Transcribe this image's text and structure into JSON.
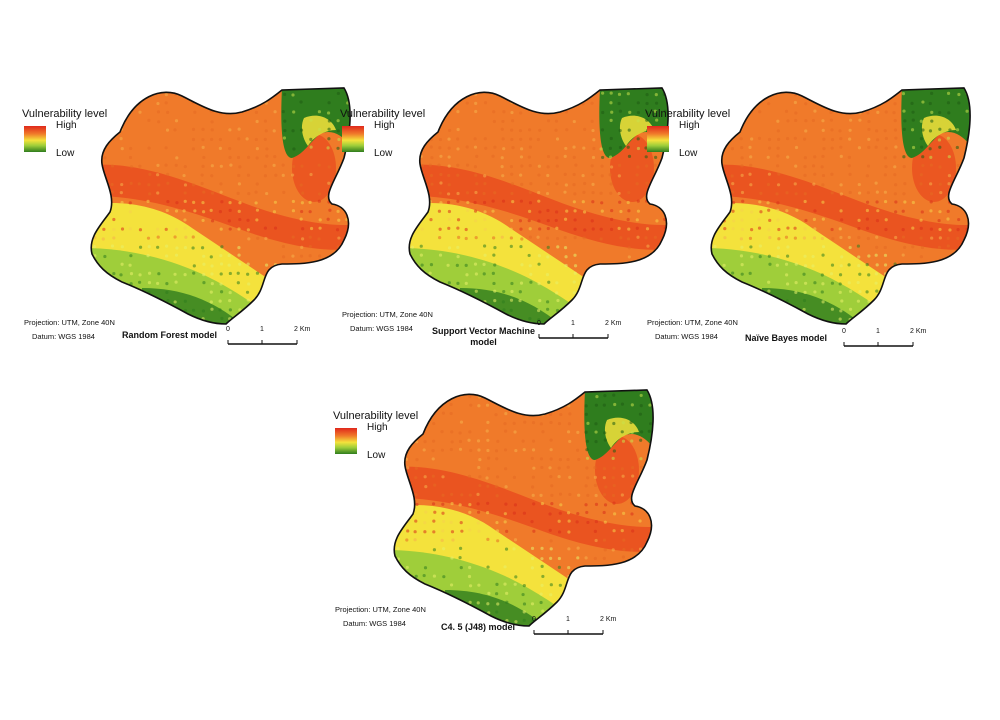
{
  "legend": {
    "title": "Vulnerability level",
    "high": "High",
    "low": "Low"
  },
  "projection": "Projection: UTM, Zone 40N",
  "datum": "Datum: WGS 1984",
  "scale": {
    "ticks": [
      "0",
      "1",
      "2 Km"
    ]
  },
  "colors": {
    "high": "#e0281c",
    "mid_high": "#f07a2a",
    "mid": "#f4e23c",
    "mid_low": "#9fce3a",
    "low": "#2f7d1e"
  },
  "panels": [
    {
      "title_line1": "Random Forest model",
      "title_line2": ""
    },
    {
      "title_line1": "Support Vector Machine",
      "title_line2": "model"
    },
    {
      "title_line1": "Naïve Bayes model",
      "title_line2": ""
    },
    {
      "title_line1": "C4. 5 (J48) model",
      "title_line2": ""
    }
  ]
}
